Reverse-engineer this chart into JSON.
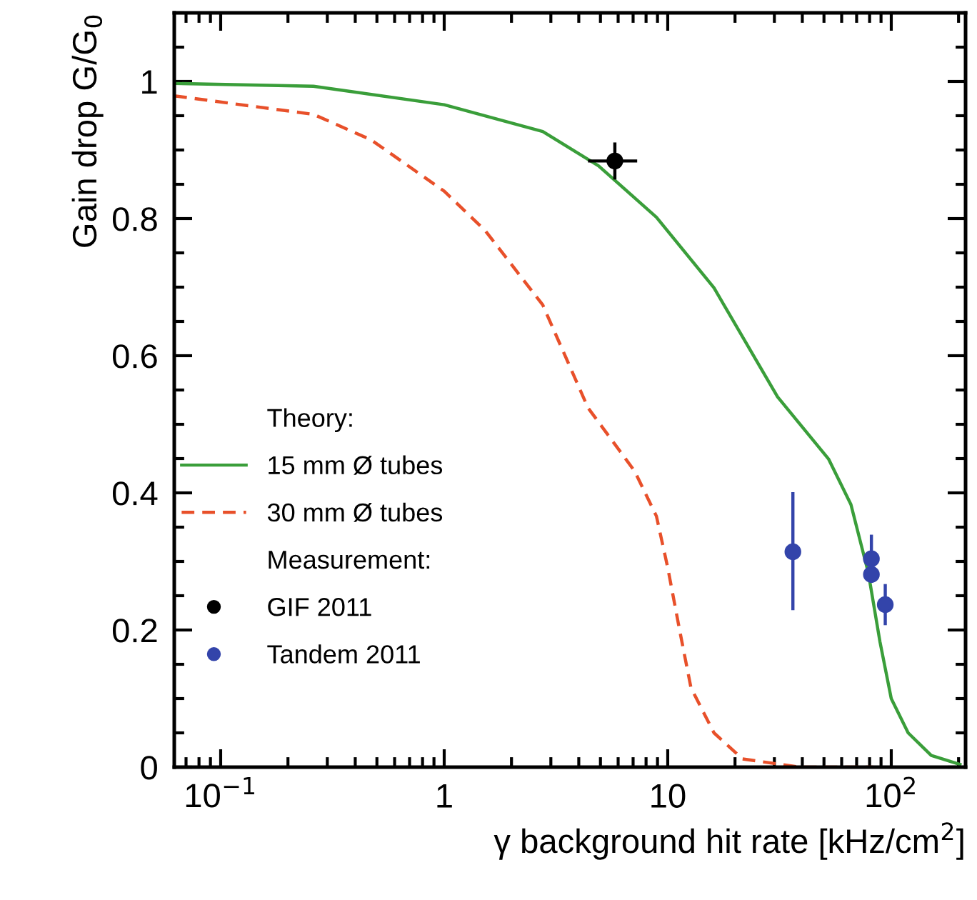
{
  "chart_data": {
    "type": "line",
    "xlabel": "γ background hit rate [kHz/cm$^{2}$]",
    "ylabel": "Gain drop G/G$_{0}$",
    "annotations": [
      "Theory:",
      "Measurement:"
    ],
    "log": "x",
    "xlim": [
      0.062,
      215
    ],
    "ylim": [
      0,
      1.1
    ],
    "xticks": [
      {
        "value": 0.1,
        "label": "10$^{−1}$"
      },
      1,
      10,
      {
        "value": 100,
        "label": "10$^{2}$"
      }
    ],
    "yticks": [
      0,
      0.2,
      0.4,
      0.6,
      0.8,
      1
    ],
    "grid": false,
    "legend": "bottom left",
    "series": [
      {
        "name": "15 mm Ø tubes",
        "line_style": "solid",
        "color": "#3a9e3a",
        "x": [
          0.062,
          0.26,
          1,
          2.76,
          4.9,
          8.9,
          16.1,
          31,
          52.5,
          66,
          79,
          89,
          100,
          119,
          151,
          203
        ],
        "values": [
          0.997,
          0.993,
          0.966,
          0.927,
          0.877,
          0.802,
          0.699,
          0.54,
          0.449,
          0.383,
          0.283,
          0.183,
          0.1,
          0.05,
          0.017,
          0.004
        ]
      },
      {
        "name": "30 mm Ø tubes",
        "line_style": "dashed",
        "color": "#e8502a",
        "x": [
          0.062,
          0.26,
          0.47,
          1,
          1.53,
          2.76,
          4.4,
          7.1,
          8.9,
          10,
          11.3,
          12.7,
          16.1,
          21.6,
          39,
          83
        ],
        "values": [
          0.979,
          0.952,
          0.915,
          0.84,
          0.782,
          0.674,
          0.524,
          0.432,
          0.366,
          0.291,
          0.2,
          0.116,
          0.05,
          0.012,
          0,
          0
        ]
      },
      {
        "name": "GIF 2011",
        "type": "scatter",
        "marker": "circle",
        "color": "#000000",
        "x": [
          5.8
        ],
        "values": [
          0.884
        ],
        "errors": [
          0.027
        ],
        "xerrors": [
          [
            4.4,
            7.3
          ]
        ]
      },
      {
        "name": "Tandem 2011",
        "type": "scatter",
        "marker": "circle",
        "color": "#3344aa",
        "x": [
          36.3,
          81.5,
          81.5,
          94
        ],
        "values": [
          0.314,
          0.304,
          0.281,
          0.237
        ],
        "errors": [
          [
            0.229,
            0.401
          ],
          0.035,
          null,
          0.03
        ],
        "xerrors": [
          null,
          null,
          null,
          null
        ]
      }
    ]
  }
}
